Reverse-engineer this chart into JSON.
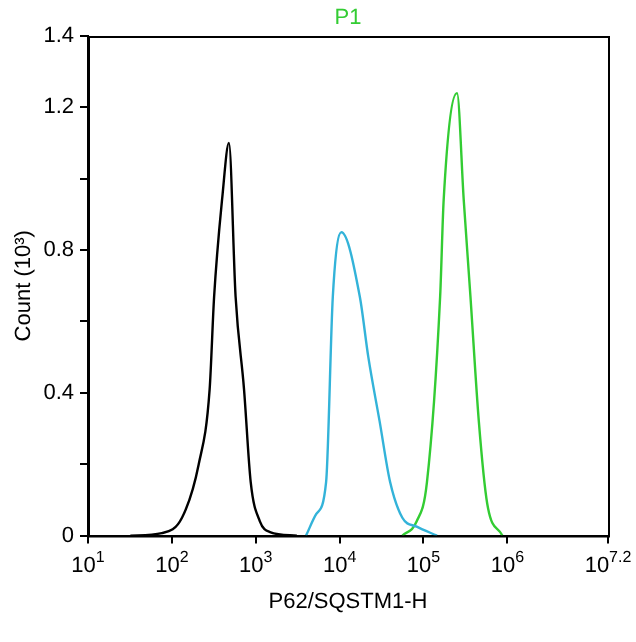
{
  "chart_data": {
    "type": "line",
    "title": "P1",
    "xlabel": "P62/SQSTM1-H",
    "ylabel": "Count (10³)",
    "log": "x",
    "xlim": [
      10,
      15848932
    ],
    "xticks": [
      {
        "value": 10,
        "label": "10$^{1}$"
      },
      {
        "value": 100,
        "label": "10$^{2}$"
      },
      {
        "value": 1000,
        "label": "10$^{3}$"
      },
      {
        "value": 10000,
        "label": "10$^{4}$"
      },
      {
        "value": 100000,
        "label": "10$^{5}$"
      },
      {
        "value": 1000000,
        "label": "10$^{6}$"
      },
      {
        "value": 15848932,
        "label": "10$^{7.2}$"
      }
    ],
    "ylim": [
      0,
      1.4
    ],
    "yticks": [
      0,
      {
        "value": 0.2,
        "label": null
      },
      0.4,
      {
        "value": 0.6,
        "label": null
      },
      0.8,
      {
        "value": 1.0,
        "label": null
      },
      1.2,
      1.4
    ],
    "grid": false,
    "legend": false,
    "marker": "none",
    "line_style": "solid",
    "series": [
      {
        "color": "#000000",
        "x": [
          32,
          76,
          132,
          209,
          282,
          319,
          400,
          479,
          575,
          725,
          871,
          1120,
          1480,
          3090
        ],
        "values": [
          0,
          0.007,
          0.05,
          0.2,
          0.41,
          0.67,
          0.95,
          1.1,
          0.67,
          0.41,
          0.15,
          0.04,
          0.01,
          0
        ]
      },
      {
        "color": "#33b3d9",
        "x": [
          3980,
          5250,
          6900,
          8300,
          10500,
          17400,
          22000,
          30000,
          40000,
          56000,
          83000,
          145000
        ],
        "values": [
          0,
          0.06,
          0.15,
          0.67,
          0.85,
          0.67,
          0.5,
          0.32,
          0.15,
          0.05,
          0.025,
          0
        ]
      },
      {
        "color": "#33cc33",
        "x": [
          56000,
          83000,
          110000,
          158000,
          174000,
          251000,
          302000,
          363000,
          457000,
          575000,
          871000
        ],
        "values": [
          0,
          0.04,
          0.15,
          0.67,
          0.94,
          1.24,
          0.94,
          0.67,
          0.32,
          0.09,
          0
        ]
      }
    ]
  }
}
